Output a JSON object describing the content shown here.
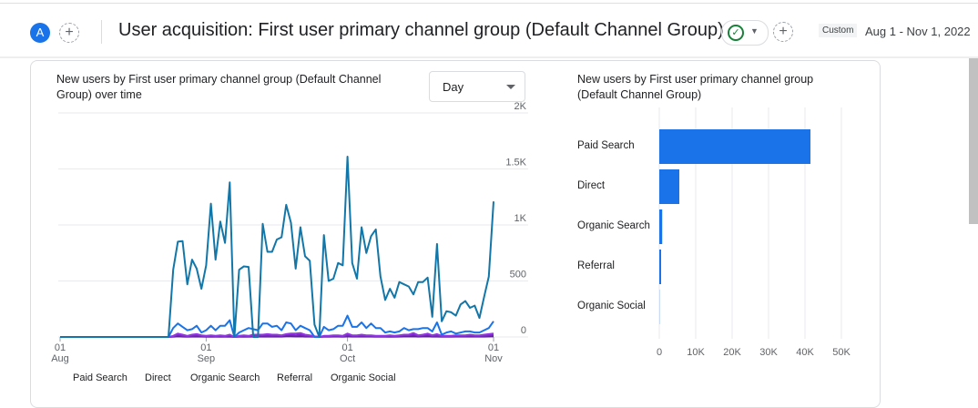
{
  "header": {
    "avatar": "A",
    "title": "User acquisition: First user primary channel group (Default Channel Group)",
    "custom_label": "Custom",
    "date_range": "Aug 1 - Nov 1, 2022"
  },
  "line_card": {
    "title_line1": "New users by First user primary channel group (Default Channel",
    "title_line2": "Group) over time",
    "interval": "Day"
  },
  "bar_card": {
    "title_line1": "New users by First user primary channel group",
    "title_line2": "(Default Channel Group)"
  },
  "chart_data": [
    {
      "type": "line",
      "x_start": "2022-08-01",
      "x_end": "2022-11-01",
      "x_ticks": [
        {
          "day": "01",
          "month": "Aug"
        },
        {
          "day": "01",
          "month": "Sep"
        },
        {
          "day": "01",
          "month": "Oct"
        },
        {
          "day": "01",
          "month": "Nov"
        }
      ],
      "y_ticks": [
        "0",
        "500",
        "1K",
        "1.5K",
        "2K"
      ],
      "ylim": [
        0,
        2000
      ],
      "grid": true,
      "legend_placement": "bottom",
      "series": [
        {
          "name": "Paid Search",
          "color": "#1277a8",
          "values": [
            0,
            0,
            0,
            0,
            0,
            0,
            0,
            0,
            0,
            0,
            0,
            0,
            0,
            0,
            0,
            0,
            0,
            0,
            0,
            0,
            0,
            0,
            0,
            0,
            600,
            850,
            855,
            470,
            690,
            610,
            430,
            640,
            1190,
            690,
            1030,
            840,
            1380,
            0,
            600,
            630,
            625,
            0,
            0,
            1010,
            760,
            760,
            870,
            890,
            1180,
            1020,
            610,
            980,
            720,
            680,
            110,
            0,
            910,
            500,
            520,
            660,
            640,
            1610,
            660,
            520,
            980,
            750,
            900,
            960,
            540,
            330,
            430,
            350,
            490,
            470,
            450,
            380,
            490,
            490,
            530,
            180,
            830,
            140,
            230,
            220,
            190,
            290,
            320,
            260,
            280,
            170,
            360,
            540,
            1210
          ]
        },
        {
          "name": "Direct",
          "color": "#1a73e8",
          "values": [
            0,
            0,
            0,
            0,
            0,
            0,
            0,
            0,
            0,
            0,
            0,
            0,
            0,
            0,
            0,
            0,
            0,
            0,
            0,
            0,
            0,
            0,
            0,
            0,
            80,
            120,
            90,
            60,
            70,
            100,
            40,
            60,
            100,
            60,
            100,
            100,
            150,
            0,
            40,
            60,
            80,
            70,
            60,
            120,
            120,
            90,
            100,
            60,
            130,
            120,
            60,
            100,
            80,
            60,
            0,
            0,
            90,
            60,
            70,
            100,
            100,
            190,
            90,
            90,
            130,
            80,
            120,
            80,
            80,
            40,
            50,
            40,
            50,
            80,
            60,
            70,
            70,
            80,
            80,
            50,
            130,
            20,
            40,
            50,
            30,
            40,
            50,
            50,
            40,
            40,
            60,
            80,
            140
          ]
        },
        {
          "name": "Organic Search",
          "color": "#9334e6",
          "values": [
            0,
            0,
            0,
            0,
            0,
            0,
            0,
            0,
            0,
            0,
            0,
            0,
            0,
            0,
            0,
            0,
            0,
            0,
            0,
            0,
            0,
            0,
            0,
            0,
            10,
            30,
            20,
            10,
            20,
            25,
            15,
            10,
            15,
            10,
            15,
            10,
            20,
            0,
            10,
            15,
            10,
            20,
            20,
            20,
            25,
            20,
            20,
            15,
            25,
            30,
            30,
            35,
            20,
            15,
            5,
            0,
            10,
            10,
            15,
            15,
            10,
            30,
            15,
            15,
            20,
            15,
            15,
            10,
            10,
            10,
            15,
            10,
            15,
            20,
            20,
            35,
            15,
            20,
            30,
            15,
            25,
            10,
            10,
            10,
            15,
            15,
            15,
            20,
            15,
            15,
            20,
            25,
            30
          ]
        },
        {
          "name": "Referral",
          "color": "#7627bb",
          "values": [
            0,
            0,
            0,
            0,
            0,
            0,
            0,
            0,
            0,
            0,
            0,
            0,
            0,
            0,
            0,
            0,
            0,
            0,
            0,
            0,
            0,
            0,
            0,
            0,
            5,
            20,
            10,
            5,
            10,
            15,
            10,
            5,
            10,
            5,
            10,
            5,
            10,
            0,
            5,
            10,
            5,
            10,
            10,
            15,
            10,
            10,
            15,
            10,
            20,
            20,
            15,
            20,
            10,
            10,
            5,
            0,
            5,
            5,
            10,
            10,
            5,
            15,
            10,
            10,
            10,
            10,
            10,
            5,
            5,
            5,
            10,
            5,
            10,
            15,
            15,
            20,
            10,
            15,
            20,
            10,
            10,
            5,
            5,
            5,
            10,
            10,
            10,
            10,
            10,
            10,
            10,
            15,
            20
          ]
        },
        {
          "name": "Organic Social",
          "color": "#5e1f9c",
          "values": [
            0,
            0,
            0,
            0,
            0,
            0,
            0,
            0,
            0,
            0,
            0,
            0,
            0,
            0,
            0,
            0,
            0,
            0,
            0,
            0,
            0,
            0,
            0,
            0,
            2,
            5,
            3,
            2,
            3,
            4,
            3,
            2,
            3,
            2,
            3,
            2,
            3,
            0,
            2,
            3,
            2,
            3,
            3,
            4,
            3,
            3,
            4,
            3,
            5,
            5,
            4,
            5,
            3,
            3,
            2,
            0,
            2,
            2,
            3,
            3,
            2,
            4,
            3,
            3,
            3,
            3,
            3,
            2,
            2,
            2,
            3,
            2,
            3,
            4,
            4,
            5,
            3,
            4,
            5,
            3,
            3,
            2,
            2,
            2,
            3,
            3,
            3,
            3,
            3,
            3,
            3,
            4,
            5
          ]
        }
      ]
    },
    {
      "type": "bar",
      "orientation": "horizontal",
      "categories": [
        "Paid Search",
        "Direct",
        "Organic Search",
        "Referral",
        "Organic Social"
      ],
      "values": [
        41500,
        5500,
        800,
        500,
        50
      ],
      "color": "#1a73e8",
      "x_ticks": [
        "0",
        "10K",
        "20K",
        "30K",
        "40K",
        "50K"
      ],
      "xlim": [
        0,
        50000
      ],
      "grid": true
    }
  ]
}
